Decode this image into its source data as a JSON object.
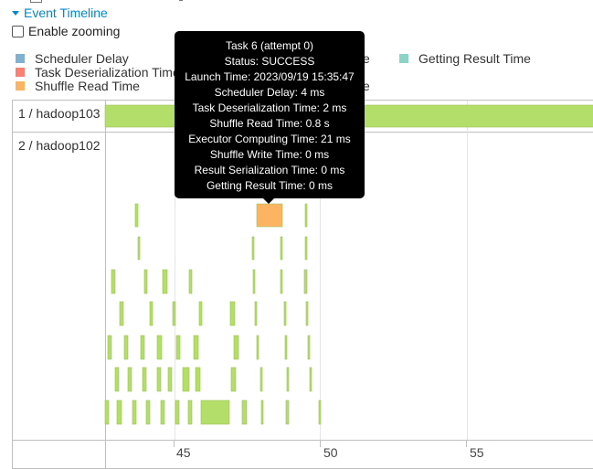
{
  "section": {
    "title": "Event Timeline",
    "zoom_label": "Enable zooming"
  },
  "legend": [
    {
      "label": "Scheduler Delay",
      "color": "#80B1D3"
    },
    {
      "label": "Task Deserialization Time",
      "color": "#FB8072"
    },
    {
      "label": "Shuffle Read Time",
      "color": "#FDB462"
    },
    {
      "label": "e",
      "color": "#B3DE69"
    },
    {
      "label": "e",
      "color": "#BC80BD"
    },
    {
      "label": "Getting Result Time",
      "color": "#8DD3C7"
    }
  ],
  "groups": [
    {
      "label": "1 / hadoop103"
    },
    {
      "label": "2 / hadoop102"
    }
  ],
  "axis": {
    "ticks": [
      "45",
      "50",
      "55"
    ]
  },
  "tooltip": {
    "lines": [
      "Task 6 (attempt 0)",
      "Status: SUCCESS",
      "Launch Time: 2023/09/19 15:35:47",
      "Scheduler Delay: 4 ms",
      "Task Deserialization Time: 2 ms",
      "Shuffle Read Time: 0.8 s",
      "Executor Computing Time: 21 ms",
      "Shuffle Write Time: 0 ms",
      "Result Serialization Time: 0 ms",
      "Getting Result Time: 0 ms"
    ]
  },
  "colors": {
    "executor_computing": "#B3DE69",
    "shuffle_read": "#FDB462",
    "task_border": "#9fc05a"
  }
}
